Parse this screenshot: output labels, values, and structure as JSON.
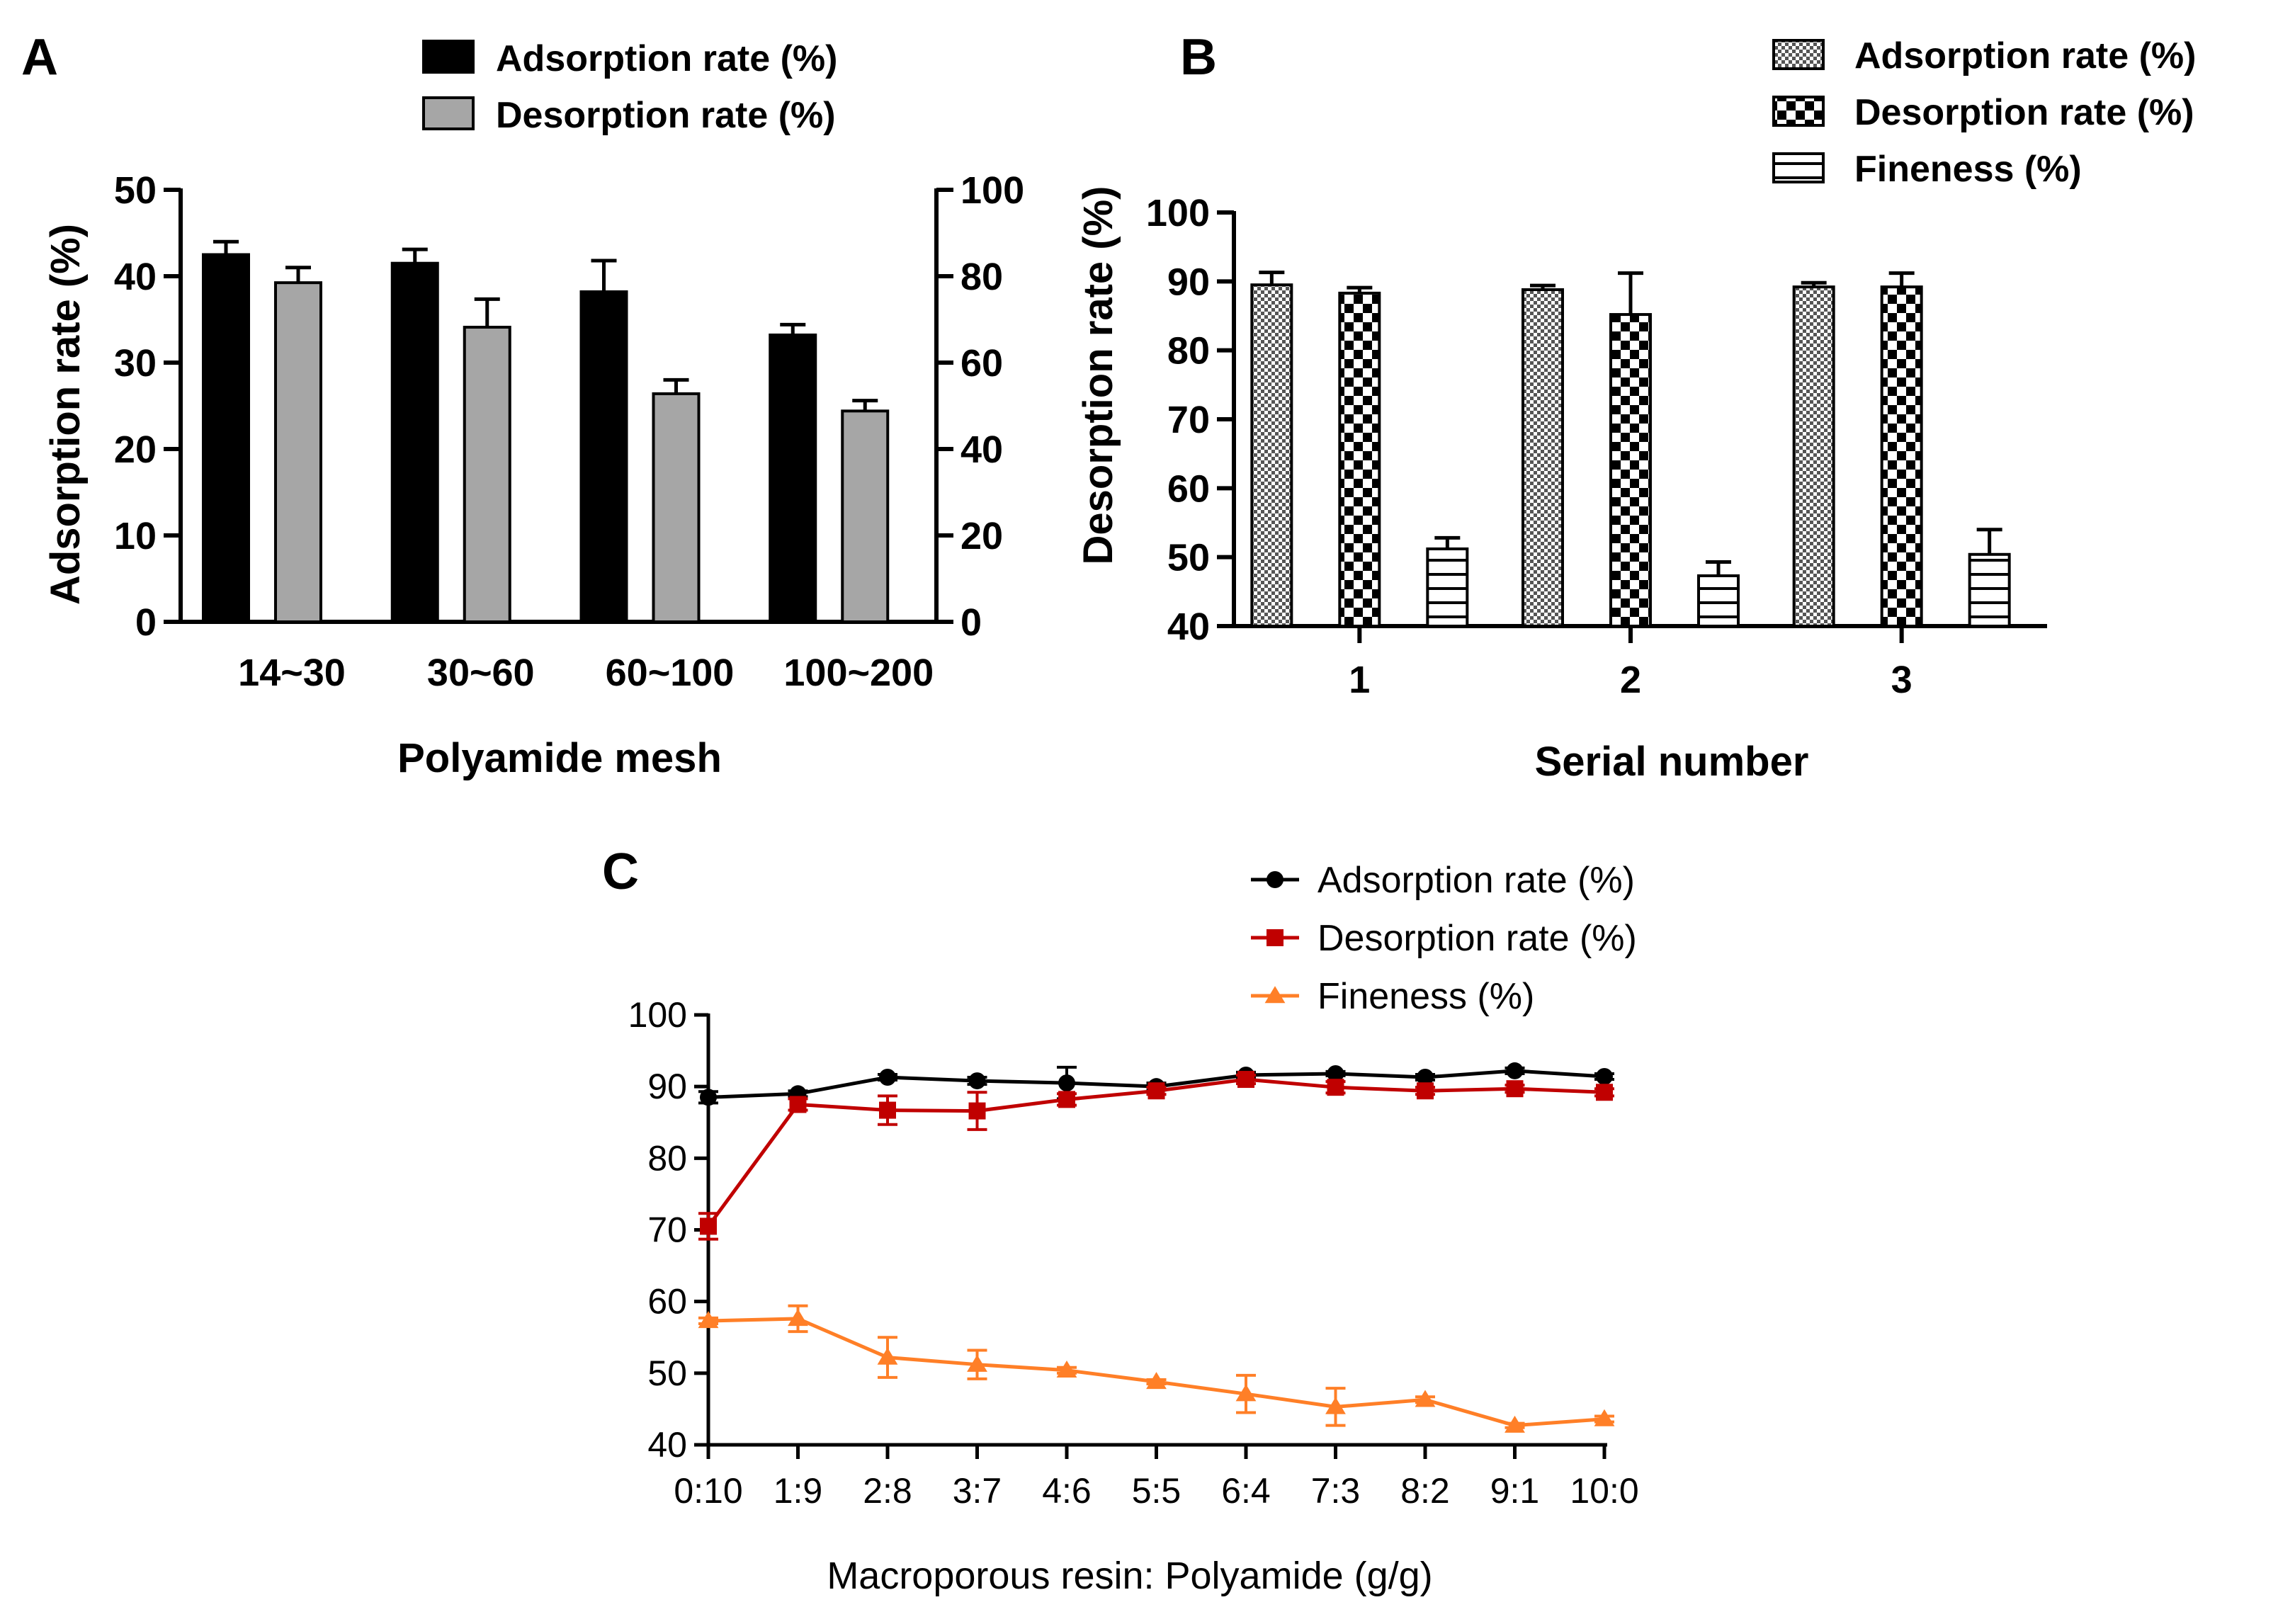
{
  "panels": {
    "A": {
      "letter": "A"
    },
    "B": {
      "letter": "B"
    },
    "C": {
      "letter": "C"
    }
  },
  "colors": {
    "black": "#000000",
    "gray": "#a6a6a6",
    "red": "#c00000",
    "orange": "#ff7f27"
  },
  "chart_data": [
    {
      "id": "A",
      "type": "bar",
      "title": "",
      "xlabel": "Polyamide mesh",
      "ylabel": "Adsorption rate (%)",
      "ylabel_right": "Desorption rate (%)",
      "ylim": [
        0,
        50
      ],
      "ylim_right": [
        0,
        100
      ],
      "yticks": [
        0,
        10,
        20,
        30,
        40,
        50
      ],
      "yticks_right": [
        0,
        20,
        40,
        60,
        80,
        100
      ],
      "categories": [
        "14~30",
        "30~60",
        "60~100",
        "100~200"
      ],
      "series": [
        {
          "name": "Adsorption rate (%)",
          "axis": "left",
          "color": "#000000",
          "values": [
            42.5,
            41.5,
            38.2,
            33.2
          ],
          "errors": [
            1.5,
            1.6,
            3.6,
            1.2
          ]
        },
        {
          "name": "Desorption rate (%)",
          "axis": "right",
          "color": "#a6a6a6",
          "values": [
            78.5,
            68.2,
            52.8,
            48.8
          ],
          "errors": [
            3.5,
            6.5,
            3.2,
            2.4
          ]
        }
      ]
    },
    {
      "id": "B",
      "type": "bar",
      "title": "",
      "xlabel": "Serial number",
      "ylabel": "",
      "ylim": [
        40,
        100
      ],
      "yticks": [
        40,
        50,
        60,
        70,
        80,
        90,
        100
      ],
      "categories": [
        "1",
        "2",
        "3"
      ],
      "series": [
        {
          "name": "Adsorption rate (%)",
          "pattern": "dense",
          "values": [
            89.5,
            88.8,
            89.2
          ],
          "errors": [
            1.8,
            0.6,
            0.6
          ]
        },
        {
          "name": "Desorption rate (%)",
          "pattern": "checker",
          "values": [
            88.3,
            85.2,
            89.2
          ],
          "errors": [
            0.8,
            6.0,
            2.0
          ]
        },
        {
          "name": "Fineness (%)",
          "pattern": "hstripe",
          "values": [
            51.2,
            47.3,
            50.4
          ],
          "errors": [
            1.6,
            2.0,
            3.6
          ]
        }
      ]
    },
    {
      "id": "C",
      "type": "line",
      "title": "",
      "xlabel": "Macroporous resin: Polyamide (g/g)",
      "ylabel": "",
      "ylim": [
        40,
        100
      ],
      "yticks": [
        40,
        50,
        60,
        70,
        80,
        90,
        100
      ],
      "categories": [
        "0:10",
        "1:9",
        "2:8",
        "3:7",
        "4:6",
        "5:5",
        "6:4",
        "7:3",
        "8:2",
        "9:1",
        "10:0"
      ],
      "series": [
        {
          "name": "Adsorption rate (%)",
          "marker": "circle",
          "color": "#000000",
          "values": [
            88.5,
            89.0,
            91.3,
            90.8,
            90.5,
            90.0,
            91.6,
            91.8,
            91.3,
            92.2,
            91.4
          ],
          "errors": [
            0.8,
            0.4,
            0.4,
            0.5,
            2.2,
            0.5,
            0.4,
            0.3,
            0.4,
            0.4,
            0.4
          ]
        },
        {
          "name": "Desorption rate (%)",
          "marker": "square",
          "color": "#c00000",
          "values": [
            70.5,
            87.5,
            86.7,
            86.6,
            88.2,
            89.4,
            91.0,
            89.9,
            89.4,
            89.7,
            89.2
          ],
          "errors": [
            1.8,
            0.8,
            2.0,
            2.6,
            0.8,
            0.5,
            0.6,
            0.8,
            0.5,
            0.5,
            0.5
          ]
        },
        {
          "name": "Fineness (%)",
          "marker": "triangle",
          "color": "#ff7f27",
          "values": [
            57.3,
            57.6,
            52.2,
            51.2,
            50.4,
            48.8,
            47.1,
            45.3,
            46.3,
            42.7,
            43.6
          ],
          "errors": [
            0.4,
            1.8,
            2.8,
            2.0,
            0.4,
            0.3,
            2.6,
            2.6,
            0.4,
            0.3,
            0.4
          ]
        }
      ]
    }
  ]
}
